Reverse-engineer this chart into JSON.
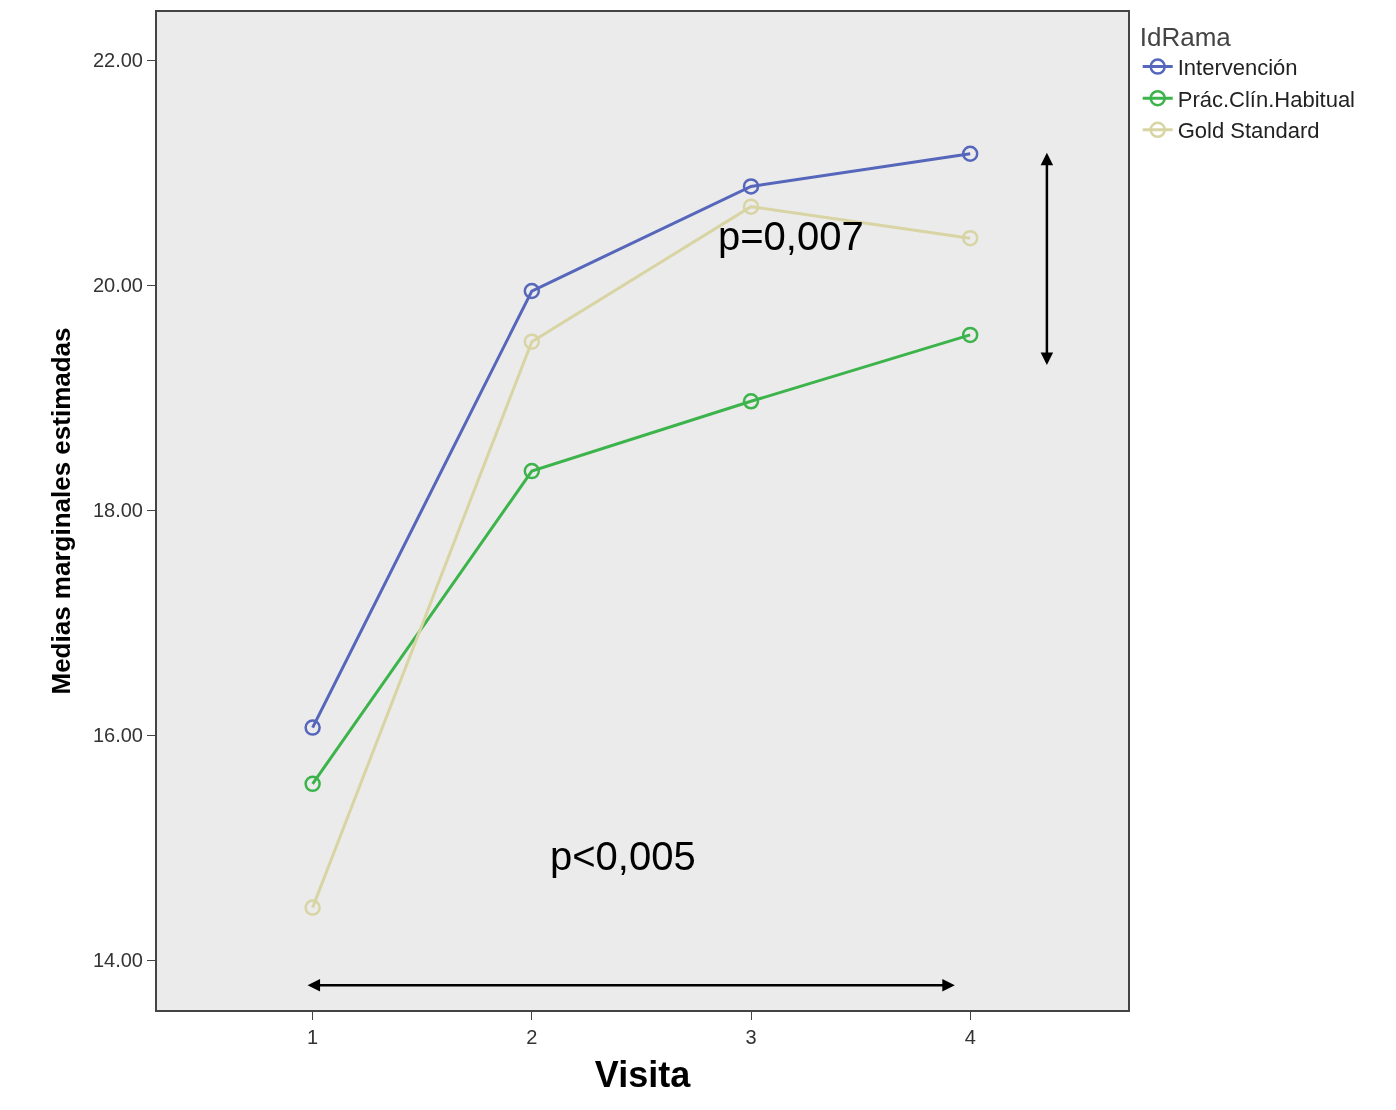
{
  "chart_data": {
    "type": "line",
    "xlabel": "Visita",
    "ylabel": "Medias marginales estimadas",
    "legend_title": "IdRama",
    "x": [
      1,
      2,
      3,
      4
    ],
    "series": [
      {
        "name": "Intervención",
        "color": "#5566bb",
        "values": [
          16.07,
          19.95,
          20.88,
          21.17
        ]
      },
      {
        "name": "Prác.Clín.Habitual",
        "color": "#3cb44b",
        "values": [
          15.57,
          18.35,
          18.97,
          19.56
        ]
      },
      {
        "name": "Gold Standard",
        "color": "#d8d4a4",
        "values": [
          14.47,
          19.5,
          20.7,
          20.42
        ]
      }
    ],
    "xlim": [
      0.29,
      4.72
    ],
    "xticks": [
      1,
      2,
      3,
      4
    ],
    "ylim": [
      13.56,
      22.43
    ],
    "yticks": [
      {
        "value": 14,
        "label": "14.00"
      },
      {
        "value": 16,
        "label": "16.00"
      },
      {
        "value": 18,
        "label": "18.00"
      },
      {
        "value": 20,
        "label": "20.00"
      },
      {
        "value": 22,
        "label": "22.00"
      }
    ],
    "annotations": [
      "p=0,007",
      "p<0,005"
    ],
    "marker": "circle",
    "line_style": "solid",
    "grid": false,
    "legend": "top right"
  }
}
